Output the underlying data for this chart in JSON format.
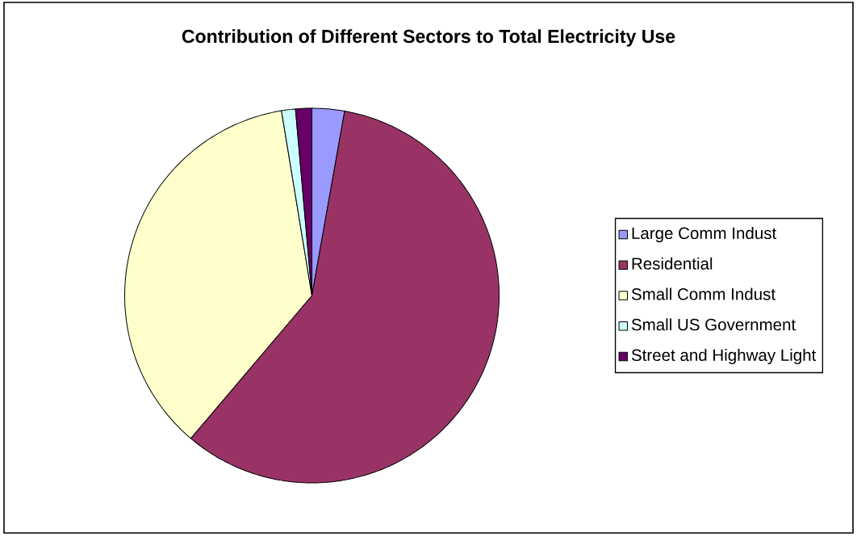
{
  "chart_data": {
    "type": "pie",
    "title": "Contribution of Different Sectors to Total Electricity Use",
    "categories": [
      "Large Comm Indust",
      "Residential",
      "Small Comm Indust",
      "Small US Government",
      "Street and Highway Light"
    ],
    "values": [
      2.8,
      58.4,
      36.2,
      1.2,
      1.4
    ],
    "colors": [
      "#9999ff",
      "#993366",
      "#ffffcc",
      "#ccffff",
      "#660066"
    ],
    "legend": "right"
  }
}
